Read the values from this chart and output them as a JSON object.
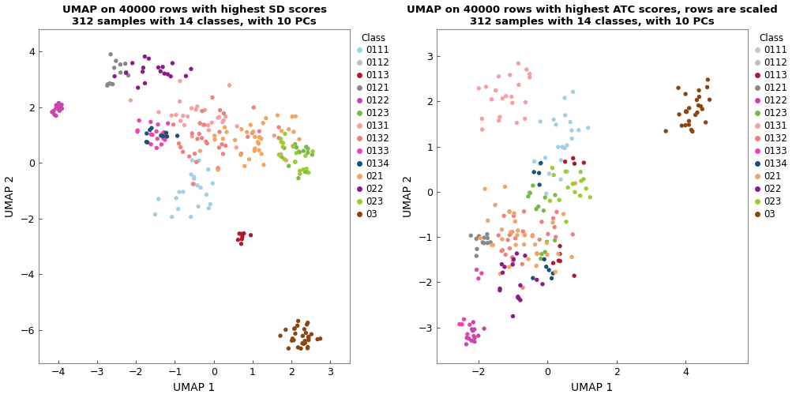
{
  "title1": "UMAP on 40000 rows with highest SD scores\n312 samples with 14 classes, with 10 PCs",
  "title2": "UMAP on 40000 rows with highest ATC scores, rows are scaled\n312 samples with 14 classes, with 10 PCs",
  "xlabel": "UMAP 1",
  "ylabel": "UMAP 2",
  "classes": [
    "0111",
    "0112",
    "0113",
    "0121",
    "0122",
    "0123",
    "0131",
    "0132",
    "0133",
    "0134",
    "021",
    "022",
    "023",
    "03"
  ],
  "colors": {
    "0111": "#a6cee3",
    "0112": "#c0c0c0",
    "0113": "#b2182b",
    "0121": "#888888",
    "0122": "#cc44aa",
    "0123": "#77bb44",
    "0131": "#f4a0a0",
    "0132": "#f08080",
    "0133": "#ee44aa",
    "0134": "#1a5276",
    "021": "#f4a460",
    "022": "#8b1a8b",
    "023": "#9acd32",
    "03": "#8b4513"
  },
  "plot1_xlim": [
    -4.5,
    3.5
  ],
  "plot1_ylim": [
    -7.2,
    4.8
  ],
  "plot1_xticks": [
    -4,
    -3,
    -2,
    -1,
    0,
    1,
    2,
    3
  ],
  "plot1_yticks": [
    -6,
    -4,
    -2,
    0,
    2,
    4
  ],
  "plot2_xlim": [
    -3.2,
    5.8
  ],
  "plot2_ylim": [
    -3.8,
    3.6
  ],
  "plot2_xticks": [
    -2,
    0,
    2,
    4
  ],
  "plot2_yticks": [
    -3,
    -2,
    -1,
    0,
    1,
    2,
    3
  ],
  "point_size": 15,
  "title_fontsize": 9.5,
  "axis_label_fontsize": 10,
  "tick_fontsize": 9,
  "legend_fontsize": 8.5
}
